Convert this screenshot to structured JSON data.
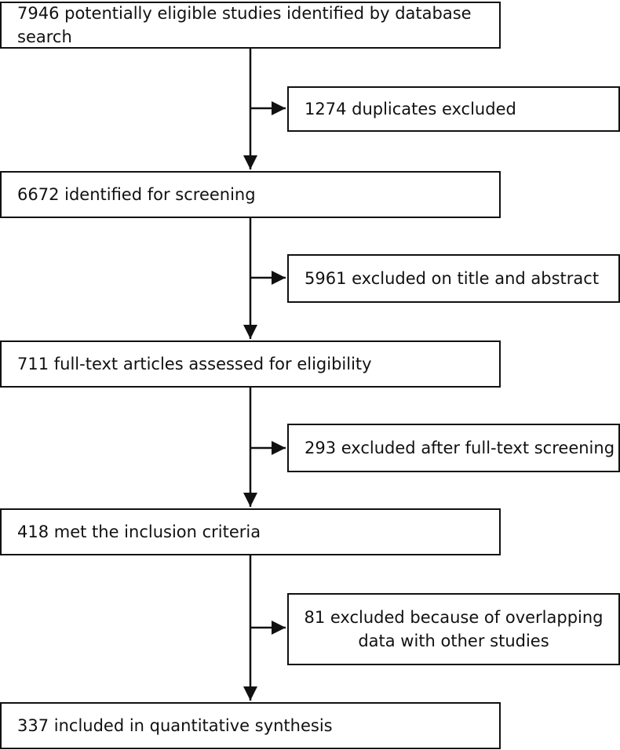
{
  "steps": {
    "identified": "7946 potentially eligible studies identified by database search",
    "screening": "6672 identified for screening",
    "full_text": "711 full-text articles assessed for eligibility",
    "met_criteria": "418 met the inclusion criteria",
    "included": "337 included in quantitative synthesis"
  },
  "exclusions": {
    "duplicates": "1274 duplicates excluded",
    "title_abstract": "5961 excluded on title and abstract",
    "full_text": "293 excluded after full-text screening",
    "overlap_line1": "81 excluded because of overlapping",
    "overlap_line2": "data with other studies"
  }
}
